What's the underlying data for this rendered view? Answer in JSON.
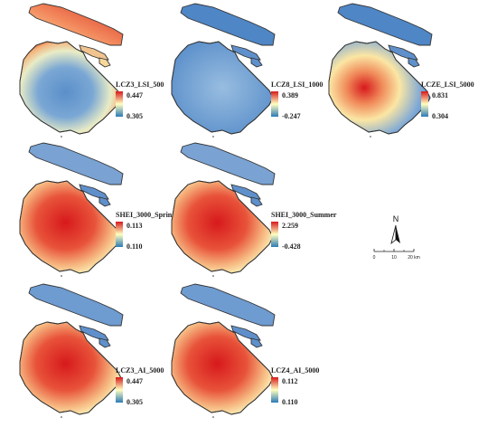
{
  "panels": [
    {
      "id": "lcz3-lsi-500",
      "title": "LCZ3_LSI_500",
      "max": "0.447",
      "min": "0.305",
      "pattern": "edge"
    },
    {
      "id": "lcz8-lsi-1000",
      "title": "LCZ8_LSI_1000",
      "max": "0.389",
      "min": "-0.247",
      "pattern": "spots"
    },
    {
      "id": "lcze-lsi-5000",
      "title": "LCZE_LSI_5000",
      "max": "0.831",
      "min": "0.304",
      "pattern": "west"
    },
    {
      "id": "shei-3000-spring",
      "title": "SHEI_3000_Spring",
      "max": "0.113",
      "min": "0.110",
      "pattern": "center"
    },
    {
      "id": "shei-3000-summer",
      "title": "SHEI_3000_Summer",
      "max": "2.259",
      "min": "-0.428",
      "pattern": "center"
    },
    {
      "id": "lcz3-ai-5000",
      "title": "LCZ3_AI_5000",
      "max": "0.447",
      "min": "0.305",
      "pattern": "center-east"
    },
    {
      "id": "lcz4-ai-5000",
      "title": "LCZ4_AI_5000",
      "max": "0.112",
      "min": "0.110",
      "pattern": "center-east"
    }
  ],
  "north_arrow": {
    "label": "N",
    "icon": "north-arrow-icon"
  },
  "scale_bar": {
    "labels": [
      "0",
      "10",
      "20 km"
    ]
  },
  "colors": {
    "high": "#d7191c",
    "mid": "#ffffbf",
    "low": "#2c7bb6"
  }
}
